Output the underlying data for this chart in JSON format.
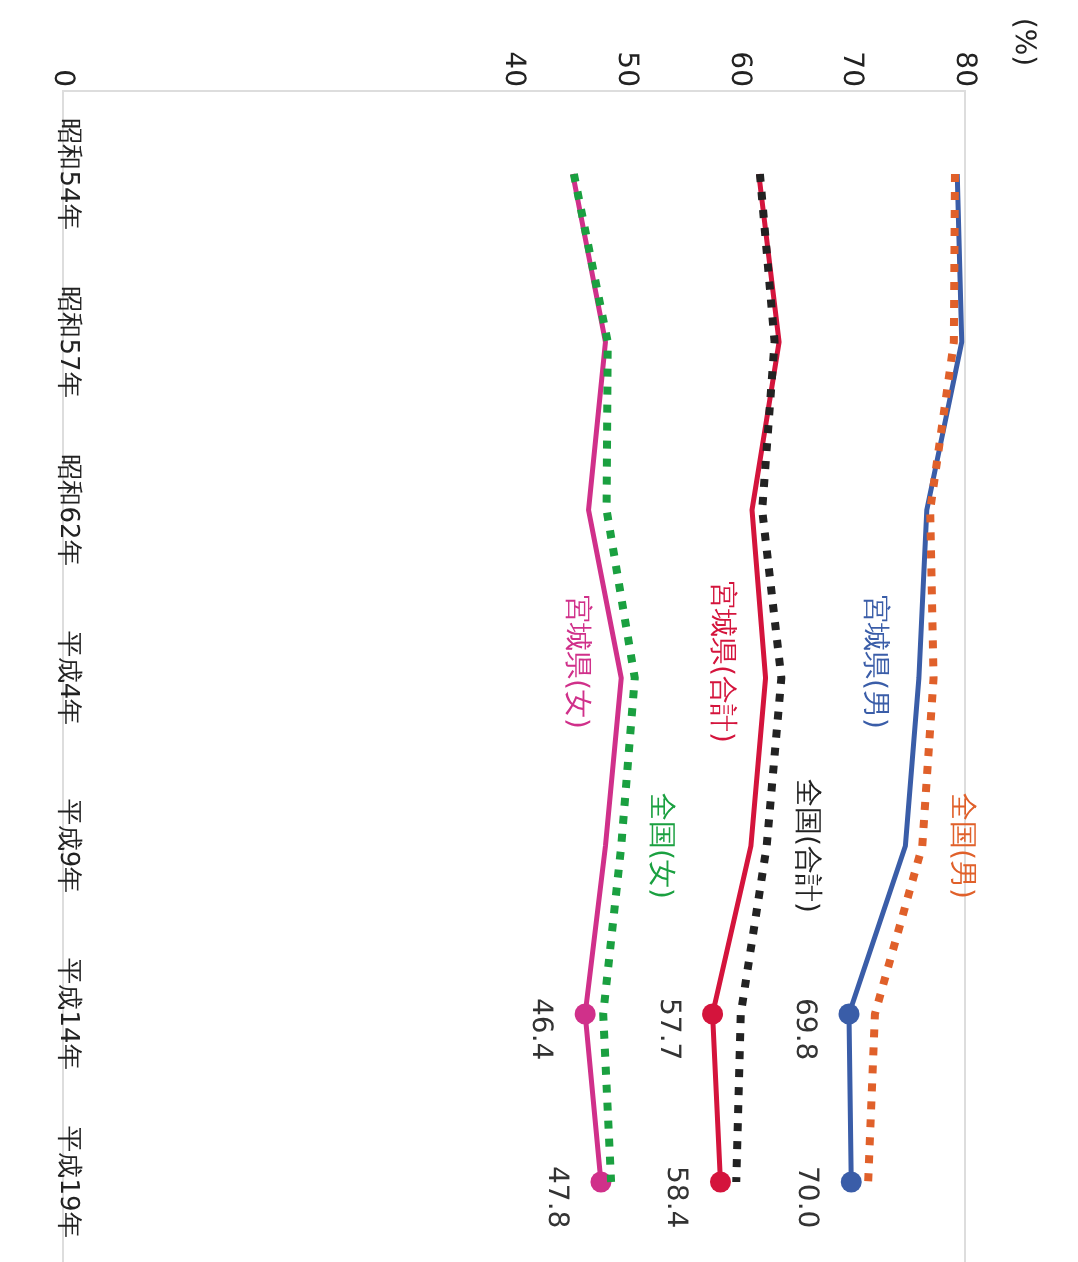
{
  "chart_data": {
    "type": "line",
    "orientation": "horizontal",
    "ylabel": "(%)",
    "categories": [
      "昭和54年",
      "昭和57年",
      "昭和62年",
      "平成4年",
      "平成9年",
      "平成14年",
      "平成19年"
    ],
    "xlim": [
      0,
      80
    ],
    "xticks": [
      0,
      40,
      50,
      60,
      70,
      80
    ],
    "grid": false,
    "series": [
      {
        "name": "宮城県(男)",
        "color": "#3a5da8",
        "line_style": "solid",
        "values": [
          79.4,
          79.8,
          76.7,
          76.0,
          74.8,
          69.8,
          70.0
        ],
        "value_labels": [
          null,
          null,
          null,
          null,
          null,
          "69.8",
          "70.0"
        ]
      },
      {
        "name": "全国(男)",
        "color": "#e0602a",
        "line_style": "dotted",
        "values": [
          79.2,
          79.1,
          77.0,
          77.3,
          76.3,
          72.1,
          71.5
        ]
      },
      {
        "name": "宮城県(合計)",
        "color": "#d4143c",
        "line_style": "solid",
        "values": [
          61.8,
          63.6,
          61.2,
          62.4,
          61.1,
          57.7,
          58.4
        ],
        "value_labels": [
          null,
          null,
          null,
          null,
          null,
          "57.7",
          "58.4"
        ]
      },
      {
        "name": "全国(合計)",
        "color": "#222222",
        "line_style": "dotted",
        "values": [
          61.9,
          63.2,
          62.1,
          63.8,
          62.5,
          60.2,
          59.8
        ]
      },
      {
        "name": "宮城県(女)",
        "color": "#d0308a",
        "line_style": "solid",
        "values": [
          45.3,
          48.2,
          46.7,
          49.6,
          48.2,
          46.4,
          47.8
        ],
        "value_labels": [
          null,
          null,
          null,
          null,
          null,
          "46.4",
          "47.8"
        ]
      },
      {
        "name": "全国(女)",
        "color": "#1aa040",
        "line_style": "dotted",
        "values": [
          45.4,
          48.4,
          48.3,
          50.8,
          49.6,
          48.0,
          48.7
        ]
      }
    ]
  }
}
